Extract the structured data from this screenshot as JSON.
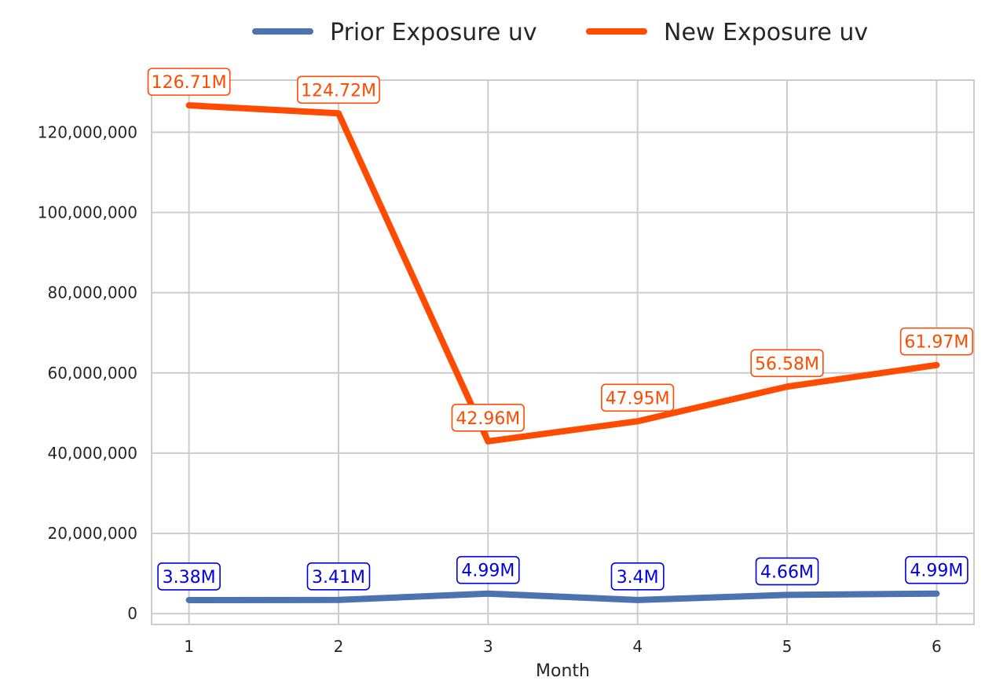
{
  "chart_data": {
    "type": "line",
    "title": "",
    "xlabel": "Month",
    "ylabel": "",
    "x": [
      1,
      2,
      3,
      4,
      5,
      6
    ],
    "x_tick_labels": [
      "1",
      "2",
      "3",
      "4",
      "5",
      "6"
    ],
    "ylim": [
      -2700000,
      133000000
    ],
    "y_ticks": [
      0,
      20000000,
      40000000,
      60000000,
      80000000,
      100000000,
      120000000
    ],
    "y_tick_labels": [
      "0",
      "20,000,000",
      "40,000,000",
      "60,000,000",
      "80,000,000",
      "100,000,000",
      "120,000,000"
    ],
    "grid": true,
    "legend_position": "top-center",
    "series": [
      {
        "name": "Prior Exposure uv",
        "color": "#4c72b0",
        "label_color": "#0000dd",
        "values": [
          3380000,
          3410000,
          4990000,
          3400000,
          4660000,
          4990000
        ],
        "data_labels": [
          "3.38M",
          "3.41M",
          "4.99M",
          "3.4M",
          "4.66M",
          "4.99M"
        ]
      },
      {
        "name": "New Exposure uv",
        "color": "#ff4b00",
        "label_color": "#ff4b00",
        "values": [
          126710000,
          124720000,
          42960000,
          47950000,
          56580000,
          61970000
        ],
        "data_labels": [
          "126.71M",
          "124.72M",
          "42.96M",
          "47.95M",
          "56.58M",
          "61.97M"
        ]
      }
    ]
  }
}
